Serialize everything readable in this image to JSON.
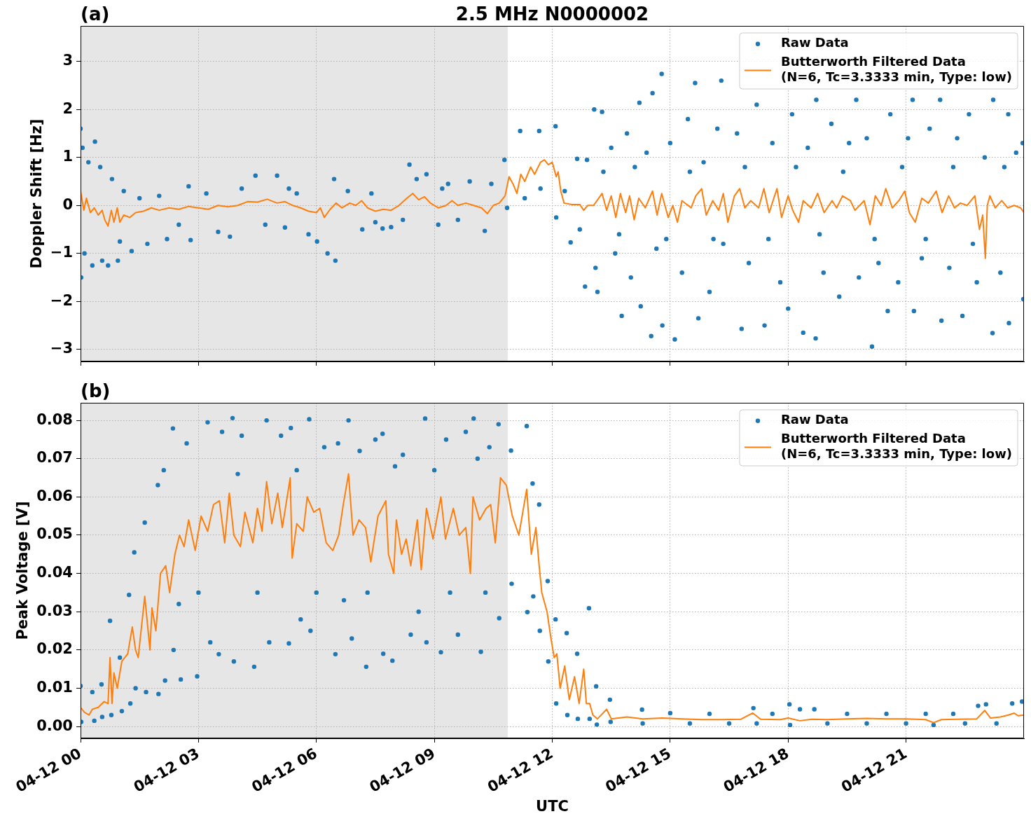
{
  "chart_data": [
    {
      "type": "scatter",
      "title": "2.5 MHz N0000002",
      "annotations": [
        "(a)"
      ],
      "ylabel": "Doppler Shift [Hz]",
      "xlim": [
        "--04-12T00:00",
        "--04-13T00:00"
      ],
      "xticks": [
        {
          "value": "--04-12T00:00",
          "label": null
        },
        {
          "value": "--04-12T03:00",
          "label": null
        },
        {
          "value": "--04-12T06:00",
          "label": null
        },
        {
          "value": "--04-12T09:00",
          "label": null
        },
        {
          "value": "--04-12T12:00",
          "label": null
        },
        {
          "value": "--04-12T15:00",
          "label": null
        },
        {
          "value": "--04-12T18:00",
          "label": null
        },
        {
          "value": "--04-12T21:00",
          "label": null
        }
      ],
      "ylim": [
        -3.25,
        3.74
      ],
      "yticks": [
        {
          "value": -3,
          "label": "−3"
        },
        {
          "value": -2,
          "label": "−2"
        },
        {
          "value": -1,
          "label": "−1"
        },
        0,
        1,
        2,
        3
      ],
      "grid": true,
      "legend": "top right",
      "tick_labels": "y",
      "bands": [
        {
          "axis": "x",
          "from": "--04-12T00:00",
          "to": "--04-12T10:52",
          "color": "#e6e6e6"
        }
      ],
      "series": [
        {
          "name": "Raw Data",
          "marker": "circle",
          "color": "#1f77b4",
          "x": [
            "--04-12T00:00",
            "--04-12T00:01",
            "--04-12T00:03",
            "--04-12T00:06",
            "--04-12T00:12",
            "--04-12T00:18",
            "--04-12T00:22",
            "--04-12T00:30",
            "--04-12T00:33",
            "--04-12T00:42",
            "--04-12T00:48",
            "--04-12T00:57",
            "--04-12T01:00",
            "--04-12T01:06",
            "--04-12T01:18",
            "--04-12T01:30",
            "--04-12T01:42",
            "--04-12T02:00",
            "--04-12T02:12",
            "--04-12T02:30",
            "--04-12T02:45",
            "--04-12T02:48",
            "--04-12T03:12",
            "--04-12T03:30",
            "--04-12T03:48",
            "--04-12T04:06",
            "--04-12T04:27",
            "--04-12T04:42",
            "--04-12T05:00",
            "--04-12T05:12",
            "--04-12T05:18",
            "--04-12T05:30",
            "--04-12T05:48",
            "--04-12T06:01",
            "--04-12T06:17",
            "--04-12T06:27",
            "--04-12T06:29",
            "--04-12T06:48",
            "--04-12T07:10",
            "--04-12T07:24",
            "--04-12T07:30",
            "--04-12T07:41",
            "--04-12T07:54",
            "--04-12T08:12",
            "--04-12T08:22",
            "--04-12T08:33",
            "--04-12T08:48",
            "--04-12T09:06",
            "--04-12T09:12",
            "--04-12T09:21",
            "--04-12T09:36",
            "--04-12T09:54",
            "--04-12T10:17",
            "--04-12T10:27",
            "--04-12T10:47",
            "--04-12T10:51",
            "--04-12T11:11",
            "--04-12T11:18",
            "--04-12T11:40",
            "--04-12T11:42",
            "--04-12T12:05",
            "--04-12T12:06",
            "--04-12T12:19",
            "--04-12T12:28",
            "--04-12T12:38",
            "--04-12T12:42",
            "--04-12T12:50",
            "--04-12T12:53",
            "--04-12T13:04",
            "--04-12T13:06",
            "--04-12T13:09",
            "--04-12T13:16",
            "--04-12T13:18",
            "--04-12T13:30",
            "--04-12T13:36",
            "--04-12T13:42",
            "--04-12T13:46",
            "--04-12T13:54",
            "--04-12T14:00",
            "--04-12T14:06",
            "--04-12T14:13",
            "--04-12T14:15",
            "--04-12T14:24",
            "--04-12T14:31",
            "--04-12T14:33",
            "--04-12T14:39",
            "--04-12T14:47",
            "--04-12T14:48",
            "--04-12T14:54",
            "--04-12T15:00",
            "--04-12T15:07",
            "--04-12T15:18",
            "--04-12T15:27",
            "--04-12T15:30",
            "--04-12T15:38",
            "--04-12T15:43",
            "--04-12T15:51",
            "--04-12T16:00",
            "--04-12T16:06",
            "--04-12T16:12",
            "--04-12T16:18",
            "--04-12T16:21",
            "--04-12T16:42",
            "--04-12T16:49",
            "--04-12T16:54",
            "--04-12T17:00",
            "--04-12T17:12",
            "--04-12T17:24",
            "--04-12T17:30",
            "--04-12T17:36",
            "--04-12T17:48",
            "--04-12T18:00",
            "--04-12T18:06",
            "--04-12T18:12",
            "--04-12T18:23",
            "--04-12T18:30",
            "--04-12T18:42",
            "--04-12T18:43",
            "--04-12T18:48",
            "--04-12T18:54",
            "--04-12T19:06",
            "--04-12T19:18",
            "--04-12T19:24",
            "--04-12T19:33",
            "--04-12T19:44",
            "--04-12T19:48",
            "--04-12T20:00",
            "--04-12T20:08",
            "--04-12T20:12",
            "--04-12T20:18",
            "--04-12T20:32",
            "--04-12T20:36",
            "--04-12T20:48",
            "--04-12T20:54",
            "--04-12T21:03",
            "--04-12T21:10",
            "--04-12T21:12",
            "--04-12T21:24",
            "--04-12T21:30",
            "--04-12T21:36",
            "--04-12T21:52",
            "--04-12T21:54",
            "--04-12T22:06",
            "--04-12T22:12",
            "--04-12T22:18",
            "--04-12T22:26",
            "--04-12T22:36",
            "--04-12T22:42",
            "--04-12T22:48",
            "--04-12T23:00",
            "--04-12T23:12",
            "--04-12T23:13",
            "--04-12T23:24",
            "--04-12T23:30",
            "--04-12T23:36",
            "--04-12T23:37",
            "--04-12T23:48",
            "--04-12T23:58",
            "--04-12T23:59"
          ],
          "values": [
            1.6,
            -1.5,
            1.2,
            -1.0,
            0.9,
            -1.25,
            1.33,
            0.8,
            -1.15,
            -1.25,
            0.55,
            -1.15,
            -0.75,
            0.3,
            -0.95,
            0.15,
            -0.8,
            0.2,
            -0.7,
            -0.4,
            0.4,
            -0.72,
            0.25,
            -0.55,
            -0.65,
            0.35,
            0.62,
            -0.4,
            0.62,
            -0.46,
            0.35,
            0.25,
            -0.6,
            -0.75,
            -1.0,
            0.55,
            -1.15,
            0.3,
            -0.5,
            0.25,
            -0.35,
            -0.48,
            -0.45,
            -0.3,
            0.85,
            0.55,
            0.65,
            -0.4,
            0.35,
            0.45,
            -0.3,
            0.5,
            -0.53,
            0.45,
            0.95,
            -0.05,
            1.55,
            0.15,
            1.55,
            0.35,
            1.65,
            -0.25,
            0.3,
            -0.77,
            0.97,
            -0.5,
            -1.69,
            0.95,
            2.0,
            -1.3,
            -1.8,
            1.95,
            0.7,
            1.2,
            -1.0,
            -0.6,
            -2.3,
            1.5,
            -1.5,
            0.8,
            2.14,
            -2.1,
            1.1,
            -2.72,
            2.34,
            -0.9,
            2.74,
            -2.5,
            -0.7,
            1.3,
            -2.79,
            -1.4,
            1.8,
            0.7,
            2.55,
            -2.35,
            0.9,
            -1.8,
            -0.7,
            1.6,
            2.6,
            -0.8,
            1.5,
            -2.57,
            0.8,
            -1.2,
            2.1,
            -2.5,
            -0.7,
            1.3,
            -1.6,
            -2.15,
            1.9,
            0.8,
            -2.65,
            1.2,
            -2.77,
            2.2,
            -0.6,
            -1.4,
            1.7,
            -1.9,
            0.7,
            1.3,
            2.2,
            -1.5,
            1.4,
            -2.94,
            -0.7,
            -1.2,
            -2.2,
            1.9,
            -1.6,
            0.8,
            1.4,
            2.2,
            -2.2,
            -1.1,
            -0.7,
            1.6,
            2.2,
            -2.4,
            -1.3,
            0.8,
            1.4,
            -2.3,
            1.9,
            -0.8,
            -1.6,
            1.0,
            -2.66,
            2.2,
            -1.4,
            0.8,
            1.9,
            -2.45,
            1.1,
            1.3,
            -1.95
          ]
        },
        {
          "name": "Butterworth Filtered Data\n(N=6, Tc=3.3333 min, Type: low)",
          "type": "line",
          "color": "#ff7f0e",
          "x": [
            "--04-12T00:00",
            "--04-12T00:05",
            "--04-12T00:09",
            "--04-12T00:15",
            "--04-12T00:21",
            "--04-12T00:27",
            "--04-12T00:33",
            "--04-12T00:37",
            "--04-12T00:42",
            "--04-12T00:47",
            "--04-12T00:51",
            "--04-12T00:56",
            "--04-12T01:00",
            "--04-12T01:06",
            "--04-12T01:15",
            "--04-12T01:24",
            "--04-12T01:36",
            "--04-12T01:48",
            "--04-12T02:00",
            "--04-12T02:15",
            "--04-12T02:30",
            "--04-12T02:45",
            "--04-12T03:00",
            "--04-12T03:15",
            "--04-12T03:30",
            "--04-12T03:45",
            "--04-12T04:00",
            "--04-12T04:15",
            "--04-12T04:30",
            "--04-12T04:45",
            "--04-12T05:00",
            "--04-12T05:12",
            "--04-12T05:24",
            "--04-12T05:36",
            "--04-12T05:48",
            "--04-12T06:00",
            "--04-12T06:06",
            "--04-12T06:12",
            "--04-12T06:21",
            "--04-12T06:30",
            "--04-12T06:39",
            "--04-12T06:51",
            "--04-12T07:00",
            "--04-12T07:09",
            "--04-12T07:18",
            "--04-12T07:30",
            "--04-12T07:42",
            "--04-12T07:54",
            "--04-12T08:06",
            "--04-12T08:18",
            "--04-12T08:27",
            "--04-12T08:36",
            "--04-12T08:45",
            "--04-12T08:54",
            "--04-12T09:06",
            "--04-12T09:18",
            "--04-12T09:27",
            "--04-12T09:36",
            "--04-12T09:48",
            "--04-12T10:00",
            "--04-12T10:12",
            "--04-12T10:21",
            "--04-12T10:30",
            "--04-12T10:39",
            "--04-12T10:48",
            "--04-12T10:54",
            "--04-12T11:00",
            "--04-12T11:06",
            "--04-12T11:12",
            "--04-12T11:18",
            "--04-12T11:27",
            "--04-12T11:33",
            "--04-12T11:42",
            "--04-12T11:48",
            "--04-12T11:54",
            "--04-12T12:00",
            "--04-12T12:06",
            "--04-12T12:09",
            "--04-12T12:13",
            "--04-12T12:18",
            "--04-12T12:30",
            "--04-12T12:42",
            "--04-12T12:48",
            "--04-12T12:54",
            "--04-12T13:03",
            "--04-12T13:16",
            "--04-12T13:23",
            "--04-12T13:30",
            "--04-12T13:37",
            "--04-12T13:44",
            "--04-12T13:52",
            "--04-12T13:58",
            "--04-12T14:05",
            "--04-12T14:12",
            "--04-12T14:22",
            "--04-12T14:33",
            "--04-12T14:40",
            "--04-12T14:47",
            "--04-12T14:57",
            "--04-12T15:04",
            "--04-12T15:11",
            "--04-12T15:18",
            "--04-12T15:32",
            "--04-12T15:39",
            "--04-12T15:48",
            "--04-12T15:55",
            "--04-12T16:05",
            "--04-12T16:14",
            "--04-12T16:21",
            "--04-12T16:28",
            "--04-12T16:38",
            "--04-12T16:46",
            "--04-12T16:54",
            "--04-12T17:03",
            "--04-12T17:15",
            "--04-12T17:23",
            "--04-12T17:31",
            "--04-12T17:43",
            "--04-12T17:50",
            "--04-12T18:00",
            "--04-12T18:07",
            "--04-12T18:16",
            "--04-12T18:23",
            "--04-12T18:35",
            "--04-12T18:45",
            "--04-12T18:55",
            "--04-12T19:07",
            "--04-12T19:14",
            "--04-12T19:23",
            "--04-12T19:35",
            "--04-12T19:42",
            "--04-12T19:56",
            "--04-12T20:05",
            "--04-12T20:13",
            "--04-12T20:22",
            "--04-12T20:29",
            "--04-12T20:39",
            "--04-12T20:49",
            "--04-12T20:58",
            "--04-12T21:05",
            "--04-12T21:14",
            "--04-12T21:24",
            "--04-12T21:34",
            "--04-12T21:46",
            "--04-12T21:55",
            "--04-12T22:05",
            "--04-12T22:14",
            "--04-12T22:23",
            "--04-12T22:33",
            "--04-12T22:45",
            "--04-12T22:52",
            "--04-12T22:57",
            "--04-12T23:01",
            "--04-12T23:04",
            "--04-12T23:08",
            "--04-12T23:16",
            "--04-12T23:26",
            "--04-12T23:35",
            "--04-12T23:45",
            "--04-12T23:55",
            "--04-13T00:00"
          ],
          "values": [
            0.3,
            -0.1,
            0.15,
            -0.15,
            -0.05,
            -0.2,
            -0.1,
            -0.3,
            -0.43,
            -0.1,
            -0.35,
            -0.05,
            -0.35,
            -0.2,
            -0.25,
            -0.15,
            -0.12,
            -0.05,
            -0.1,
            -0.05,
            -0.08,
            -0.02,
            -0.05,
            -0.08,
            0.0,
            -0.03,
            0.0,
            0.08,
            0.07,
            0.13,
            0.05,
            0.08,
            0.0,
            -0.05,
            -0.12,
            -0.15,
            -0.05,
            -0.25,
            -0.08,
            0.05,
            -0.05,
            0.05,
            0.0,
            0.1,
            -0.05,
            -0.12,
            -0.08,
            -0.1,
            0.0,
            0.15,
            0.25,
            0.12,
            0.18,
            0.05,
            -0.05,
            0.0,
            0.1,
            0.0,
            0.05,
            0.0,
            -0.05,
            -0.17,
            0.0,
            0.05,
            0.2,
            0.6,
            0.45,
            0.25,
            0.65,
            0.5,
            0.8,
            0.65,
            0.9,
            0.95,
            0.85,
            0.9,
            0.6,
            0.7,
            0.3,
            0.05,
            0.02,
            0.02,
            -0.1,
            0.0,
            0.0,
            0.25,
            -0.1,
            0.2,
            -0.25,
            0.25,
            -0.15,
            0.2,
            -0.3,
            0.15,
            -0.05,
            0.3,
            -0.2,
            0.25,
            -0.25,
            0.0,
            -0.35,
            0.1,
            -0.05,
            0.2,
            0.35,
            -0.2,
            0.1,
            -0.1,
            0.25,
            -0.35,
            0.2,
            0.35,
            -0.05,
            0.1,
            -0.05,
            0.35,
            -0.15,
            0.35,
            -0.25,
            0.2,
            -0.1,
            -0.35,
            0.1,
            -0.05,
            0.25,
            -0.15,
            0.1,
            -0.05,
            0.2,
            0.1,
            -0.1,
            0.1,
            -0.4,
            0.2,
            0.0,
            0.35,
            -0.05,
            0.1,
            0.3,
            -0.15,
            -0.35,
            0.15,
            0.05,
            0.3,
            -0.15,
            0.2,
            -0.05,
            0.05,
            0.0,
            0.2,
            -0.5,
            -0.2,
            -1.1,
            0.0,
            0.2,
            -0.05,
            0.1,
            -0.05,
            0.0,
            -0.05,
            -0.15
          ]
        }
      ]
    },
    {
      "type": "scatter",
      "annotations": [
        "(b)"
      ],
      "xlabel": "UTC",
      "ylabel": "Peak Voltage [V]",
      "xlim": [
        "--04-12T00:00",
        "--04-13T00:00"
      ],
      "xticks": [
        {
          "value": "--04-12T00:00",
          "label": "04-12 00"
        },
        {
          "value": "--04-12T03:00",
          "label": "04-12 03"
        },
        {
          "value": "--04-12T06:00",
          "label": "04-12 06"
        },
        {
          "value": "--04-12T09:00",
          "label": "04-12 09"
        },
        {
          "value": "--04-12T12:00",
          "label": "04-12 12"
        },
        {
          "value": "--04-12T15:00",
          "label": "04-12 15"
        },
        {
          "value": "--04-12T18:00",
          "label": "04-12 18"
        },
        {
          "value": "--04-12T21:00",
          "label": "04-12 21"
        }
      ],
      "ylim": [
        -0.0031,
        0.0846
      ],
      "yticks": [
        {
          "value": 0,
          "label": "0.00"
        },
        {
          "value": 0.01,
          "label": "0.01"
        },
        {
          "value": 0.02,
          "label": "0.02"
        },
        {
          "value": 0.03,
          "label": "0.03"
        },
        {
          "value": 0.04,
          "label": "0.04"
        },
        {
          "value": 0.05,
          "label": "0.05"
        },
        {
          "value": 0.06,
          "label": "0.06"
        },
        {
          "value": 0.07,
          "label": "0.07"
        },
        {
          "value": 0.08,
          "label": "0.08"
        }
      ],
      "grid": true,
      "legend": "top right",
      "bands": [
        {
          "axis": "x",
          "from": "--04-12T00:00",
          "to": "--04-12T10:52",
          "color": "#e6e6e6"
        }
      ],
      "series": [
        {
          "name": "Raw Data",
          "marker": "circle",
          "color": "#1f77b4",
          "x": [
            "--04-12T00:00",
            "--04-12T00:01",
            "--04-12T00:18",
            "--04-12T00:21",
            "--04-12T00:32",
            "--04-12T00:33",
            "--04-12T00:45",
            "--04-12T00:47",
            "--04-12T01:00",
            "--04-12T01:03",
            "--04-12T01:14",
            "--04-12T01:16",
            "--04-12T01:22",
            "--04-12T01:24",
            "--04-12T01:38",
            "--04-12T01:40",
            "--04-12T01:58",
            "--04-12T01:59",
            "--04-12T02:07",
            "--04-12T02:09",
            "--04-12T02:21",
            "--04-12T02:22",
            "--04-12T02:30",
            "--04-12T02:33",
            "--04-12T02:42",
            "--04-12T02:58",
            "--04-12T03:00",
            "--04-12T03:14",
            "--04-12T03:18",
            "--04-12T03:31",
            "--04-12T03:36",
            "--04-12T03:52",
            "--04-12T03:54",
            "--04-12T04:00",
            "--04-12T04:06",
            "--04-12T04:25",
            "--04-12T04:30",
            "--04-12T04:44",
            "--04-12T04:48",
            "--04-12T05:06",
            "--04-12T05:18",
            "--04-12T05:21",
            "--04-12T05:30",
            "--04-12T05:36",
            "--04-12T05:49",
            "--04-12T05:51",
            "--04-12T06:00",
            "--04-12T06:12",
            "--04-12T06:29",
            "--04-12T06:33",
            "--04-12T06:42",
            "--04-12T06:49",
            "--04-12T06:54",
            "--04-12T07:06",
            "--04-12T07:16",
            "--04-12T07:18",
            "--04-12T07:30",
            "--04-12T07:41",
            "--04-12T07:42",
            "--04-12T07:56",
            "--04-12T08:00",
            "--04-12T08:12",
            "--04-12T08:24",
            "--04-12T08:36",
            "--04-12T08:46",
            "--04-12T08:48",
            "--04-12T09:00",
            "--04-12T09:10",
            "--04-12T09:18",
            "--04-12T09:24",
            "--04-12T09:36",
            "--04-12T09:48",
            "--04-12T10:00",
            "--04-12T10:06",
            "--04-12T10:11",
            "--04-12T10:18",
            "--04-12T10:24",
            "--04-12T10:38",
            "--04-12T10:39",
            "--04-12T10:57",
            "--04-12T10:58",
            "--04-12T11:21",
            "--04-12T11:22",
            "--04-12T11:30",
            "--04-12T11:31",
            "--04-12T11:40",
            "--04-12T11:41",
            "--04-12T11:53",
            "--04-12T11:54",
            "--04-12T12:05",
            "--04-12T12:06",
            "--04-12T12:22",
            "--04-12T12:23",
            "--04-12T12:38",
            "--04-12T12:39",
            "--04-12T12:56",
            "--04-12T12:57",
            "--04-12T13:07",
            "--04-12T13:08",
            "--04-12T13:28",
            "--04-12T13:29",
            "--04-12T14:17",
            "--04-12T14:18",
            "--04-12T15:00",
            "--04-12T15:30",
            "--04-12T16:00",
            "--04-12T16:30",
            "--04-12T17:07",
            "--04-12T17:12",
            "--04-12T17:36",
            "--04-12T18:02",
            "--04-12T18:03",
            "--04-12T18:18",
            "--04-12T18:40",
            "--04-12T19:00",
            "--04-12T19:30",
            "--04-12T20:00",
            "--04-12T20:30",
            "--04-12T21:00",
            "--04-12T21:30",
            "--04-12T21:42",
            "--04-12T22:12",
            "--04-12T22:30",
            "--04-12T22:50",
            "--04-12T23:02",
            "--04-12T23:18",
            "--04-12T23:42",
            "--04-12T23:57"
          ],
          "values": [
            0.0106,
            0.0012,
            0.009,
            0.0015,
            0.011,
            0.0025,
            0.0276,
            0.003,
            0.018,
            0.004,
            0.0344,
            0.006,
            0.0455,
            0.01,
            0.0533,
            0.009,
            0.0631,
            0.0085,
            0.067,
            0.012,
            0.0779,
            0.02,
            0.032,
            0.0123,
            0.074,
            0.0131,
            0.035,
            0.0795,
            0.022,
            0.0189,
            0.077,
            0.0806,
            0.017,
            0.066,
            0.076,
            0.0156,
            0.035,
            0.08,
            0.022,
            0.076,
            0.0217,
            0.078,
            0.067,
            0.028,
            0.0803,
            0.025,
            0.035,
            0.073,
            0.0189,
            0.074,
            0.033,
            0.08,
            0.023,
            0.072,
            0.0156,
            0.035,
            0.075,
            0.0765,
            0.019,
            0.0172,
            0.068,
            0.071,
            0.024,
            0.03,
            0.0805,
            0.022,
            0.067,
            0.0194,
            0.075,
            0.035,
            0.024,
            0.077,
            0.0805,
            0.07,
            0.0195,
            0.035,
            0.073,
            0.079,
            0.0283,
            0.0721,
            0.0373,
            0.0785,
            0.0299,
            0.0635,
            0.034,
            0.058,
            0.025,
            0.038,
            0.017,
            0.028,
            0.006,
            0.0244,
            0.003,
            0.019,
            0.002,
            0.0309,
            0.002,
            0.0105,
            0.0005,
            0.007,
            0.0012,
            0.0044,
            0.0008,
            0.0035,
            0.0008,
            0.0033,
            0.0008,
            0.0048,
            0.0008,
            0.0033,
            0.0058,
            0.0004,
            0.0045,
            0.0045,
            0.0008,
            0.0033,
            0.0008,
            0.0033,
            0.0008,
            0.0033,
            0.0004,
            0.0033,
            0.0008,
            0.0054,
            0.0058,
            0.0008,
            0.006,
            0.0065
          ]
        },
        {
          "name": "Butterworth Filtered Data\n(N=6, Tc=3.3333 min, Type: low)",
          "type": "line",
          "color": "#ff7f0e",
          "x": [
            "--04-12T00:00",
            "--04-12T00:06",
            "--04-12T00:13",
            "--04-12T00:18",
            "--04-12T00:27",
            "--04-12T00:36",
            "--04-12T00:42",
            "--04-12T00:45",
            "--04-12T00:48",
            "--04-12T00:51",
            "--04-12T00:56",
            "--04-12T01:03",
            "--04-12T01:12",
            "--04-12T01:19",
            "--04-12T01:24",
            "--04-12T01:28",
            "--04-12T01:38",
            "--04-12T01:46",
            "--04-12T01:49",
            "--04-12T01:55",
            "--04-12T02:02",
            "--04-12T02:10",
            "--04-12T02:16",
            "--04-12T02:24",
            "--04-12T02:31",
            "--04-12T02:38",
            "--04-12T02:45",
            "--04-12T02:55",
            "--04-12T03:04",
            "--04-12T03:14",
            "--04-12T03:23",
            "--04-12T03:32",
            "--04-12T03:40",
            "--04-12T03:47",
            "--04-12T03:54",
            "--04-12T04:04",
            "--04-12T04:11",
            "--04-12T04:23",
            "--04-12T04:30",
            "--04-12T04:37",
            "--04-12T04:44",
            "--04-12T04:52",
            "--04-12T05:01",
            "--04-12T05:08",
            "--04-12T05:20",
            "--04-12T05:23",
            "--04-12T05:30",
            "--04-12T05:40",
            "--04-12T05:46",
            "--04-12T05:56",
            "--04-12T06:05",
            "--04-12T06:15",
            "--04-12T06:25",
            "--04-12T06:34",
            "--04-12T06:41",
            "--04-12T06:49",
            "--04-12T06:56",
            "--04-12T07:05",
            "--04-12T07:15",
            "--04-12T07:23",
            "--04-12T07:34",
            "--04-12T07:46",
            "--04-12T07:50",
            "--04-12T07:58",
            "--04-12T08:02",
            "--04-12T08:10",
            "--04-12T08:17",
            "--04-12T08:24",
            "--04-12T08:34",
            "--04-12T08:40",
            "--04-12T08:48",
            "--04-12T08:58",
            "--04-12T09:10",
            "--04-12T09:17",
            "--04-12T09:29",
            "--04-12T09:38",
            "--04-12T09:48",
            "--04-12T09:55",
            "--04-12T09:59",
            "--04-12T10:09",
            "--04-12T10:19",
            "--04-12T10:26",
            "--04-12T10:33",
            "--04-12T10:41",
            "--04-12T10:50",
            "--04-12T10:59",
            "--04-12T11:09",
            "--04-12T11:21",
            "--04-12T11:28",
            "--04-12T11:35",
            "--04-12T11:40",
            "--04-12T11:44",
            "--04-12T11:52",
            "--04-12T11:58",
            "--04-12T12:03",
            "--04-12T12:07",
            "--04-12T12:12",
            "--04-12T12:19",
            "--04-12T12:26",
            "--04-12T12:34",
            "--04-12T12:41",
            "--04-12T12:48",
            "--04-12T12:52",
            "--04-12T12:57",
            "--04-12T13:02",
            "--04-12T13:09",
            "--04-12T13:23",
            "--04-12T13:30",
            "--04-12T13:54",
            "--04-12T14:18",
            "--04-12T14:48",
            "--04-12T15:18",
            "--04-12T15:48",
            "--04-12T16:18",
            "--04-12T16:48",
            "--04-12T17:06",
            "--04-12T17:18",
            "--04-12T17:48",
            "--04-12T18:00",
            "--04-12T18:18",
            "--04-12T18:36",
            "--04-12T19:00",
            "--04-12T19:30",
            "--04-12T20:00",
            "--04-12T20:30",
            "--04-12T21:00",
            "--04-12T21:30",
            "--04-12T21:42",
            "--04-12T21:54",
            "--04-12T22:18",
            "--04-12T22:48",
            "--04-12T23:00",
            "--04-12T23:09",
            "--04-12T23:24",
            "--04-12T23:36",
            "--04-12T23:45",
            "--04-12T23:51",
            "--04-13T00:00"
          ],
          "values": [
            0.005,
            0.0037,
            0.003,
            0.0045,
            0.005,
            0.0065,
            0.006,
            0.018,
            0.006,
            0.014,
            0.01,
            0.017,
            0.019,
            0.026,
            0.02,
            0.018,
            0.034,
            0.02,
            0.031,
            0.025,
            0.04,
            0.042,
            0.035,
            0.045,
            0.05,
            0.047,
            0.054,
            0.046,
            0.055,
            0.051,
            0.058,
            0.059,
            0.048,
            0.061,
            0.05,
            0.047,
            0.056,
            0.048,
            0.057,
            0.051,
            0.064,
            0.053,
            0.061,
            0.052,
            0.065,
            0.044,
            0.053,
            0.051,
            0.06,
            0.056,
            0.057,
            0.048,
            0.046,
            0.05,
            0.058,
            0.066,
            0.05,
            0.054,
            0.052,
            0.043,
            0.055,
            0.059,
            0.045,
            0.04,
            0.054,
            0.045,
            0.049,
            0.042,
            0.054,
            0.041,
            0.057,
            0.049,
            0.06,
            0.049,
            0.057,
            0.05,
            0.052,
            0.04,
            0.06,
            0.054,
            0.057,
            0.058,
            0.048,
            0.065,
            0.063,
            0.055,
            0.05,
            0.062,
            0.045,
            0.052,
            0.042,
            0.035,
            0.03,
            0.023,
            0.018,
            0.019,
            0.01,
            0.0158,
            0.007,
            0.013,
            0.006,
            0.015,
            0.006,
            0.006,
            0.003,
            0.002,
            0.0045,
            0.002,
            0.0025,
            0.002,
            0.0022,
            0.002,
            0.0018,
            0.0018,
            0.0019,
            0.0035,
            0.0019,
            0.0018,
            0.0022,
            0.0015,
            0.0019,
            0.0018,
            0.002,
            0.0021,
            0.002,
            0.002,
            0.0018,
            0.001,
            0.0018,
            0.0019,
            0.002,
            0.0042,
            0.0022,
            0.0025,
            0.003,
            0.0035,
            0.0028,
            0.003
          ]
        }
      ]
    }
  ]
}
